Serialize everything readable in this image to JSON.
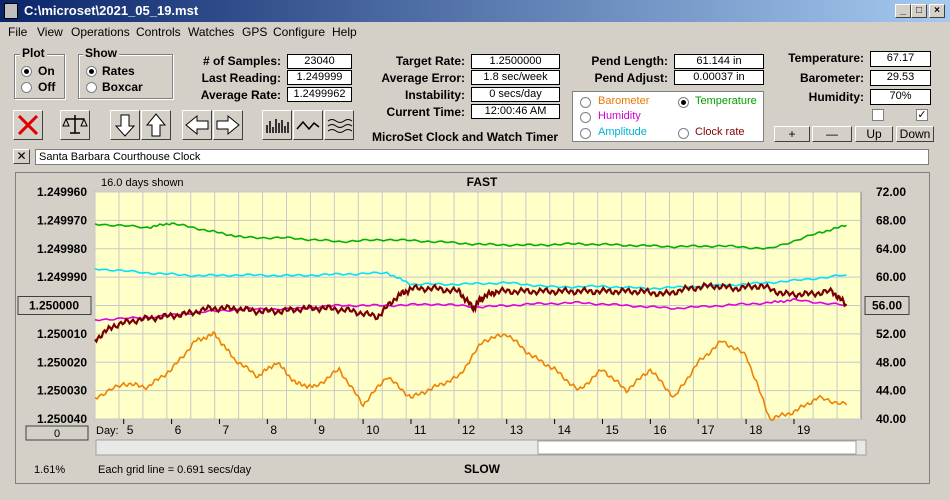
{
  "window": {
    "title": "C:\\microset\\2021_05_19.mst"
  },
  "menu": [
    "File",
    "View",
    "Operations",
    "Controls",
    "Watches",
    "GPS",
    "Configure",
    "Help"
  ],
  "plot": {
    "label": "Plot",
    "options": [
      "On",
      "Off"
    ],
    "selected": "On"
  },
  "show": {
    "label": "Show",
    "options": [
      "Rates",
      "Boxcar"
    ],
    "selected": "Rates"
  },
  "stats": {
    "samples_label": "# of Samples:",
    "samples": "23040",
    "last_label": "Last Reading:",
    "last": "1.249999",
    "avg_label": "Average Rate:",
    "avg": "1.2499962"
  },
  "rates": {
    "target_label": "Target Rate:",
    "target": "1.2500000",
    "error_label": "Average Error:",
    "error": "1.8 sec/week",
    "instab_label": "Instability:",
    "instab": "0 secs/day",
    "time_label": "Current Time:",
    "time": "12:00:46 AM"
  },
  "app_caption": "MicroSet Clock and Watch Timer",
  "pend": {
    "length_label": "Pend Length:",
    "length": "61.144 in",
    "adjust_label": "Pend Adjust:",
    "adjust": "0.00037 in"
  },
  "env": {
    "temp_label": "Temperature:",
    "temp": "67.17",
    "baro_label": "Barometer:",
    "baro": "29.53",
    "hum_label": "Humidity:",
    "hum": "70%"
  },
  "aux": {
    "options": [
      {
        "label": "Barometer",
        "color": "#e87800",
        "selected": false
      },
      {
        "label": "Temperature",
        "color": "#00a000",
        "selected": true
      },
      {
        "label": "Humidity",
        "color": "#d000d0",
        "selected": false
      },
      {
        "label": "Clock rate",
        "color": "#800000",
        "selected": false
      },
      {
        "label": "Amplitude",
        "color": "#00b0d0",
        "selected": false
      }
    ]
  },
  "scale_buttons": {
    "plus": "+",
    "minus": "—",
    "up": "Up",
    "down": "Down"
  },
  "watch_name": "Santa Barbara Courthouse Clock",
  "chart": {
    "days_shown": "16.0 days shown",
    "top_label": "FAST",
    "bottom_label": "SLOW",
    "left_ticks": [
      "1.249960",
      "1.249970",
      "1.249980",
      "1.249990",
      "1.250000",
      "1.250010",
      "1.250020",
      "1.250030",
      "1.250040"
    ],
    "right_ticks": [
      "72.00",
      "68.00",
      "64.00",
      "60.00",
      "56.00",
      "52.00",
      "48.00",
      "44.00",
      "40.00"
    ],
    "left_button": "1.250000",
    "right_button": "56.00",
    "bottom_left_button": "0",
    "day_label": "Day:",
    "days": [
      "5",
      "6",
      "7",
      "8",
      "9",
      "10",
      "11",
      "12",
      "13",
      "14",
      "15",
      "16",
      "17",
      "18",
      "19"
    ],
    "zoom": "1.61%",
    "grid_note": "Each grid line = 0.691 secs/day"
  },
  "chart_data": {
    "type": "line",
    "x_unit": "day",
    "xlim": [
      4.4,
      20.4
    ],
    "ylim_left": [
      1.24996,
      1.25004
    ],
    "ylim_right": [
      40,
      72
    ],
    "series": [
      {
        "name": "Temperature",
        "color": "#00b000",
        "axis": "right",
        "x": [
          4.4,
          5.5,
          6,
          6.8,
          7.5,
          8.5,
          9.5,
          10.5,
          11.5,
          12.5,
          13.5,
          14.5,
          15.5,
          16.5,
          17.5,
          18.5,
          19.5,
          20.1
        ],
        "y": [
          67.5,
          67,
          67.6,
          66.5,
          65.6,
          65.5,
          65,
          65.3,
          65,
          64.6,
          64.5,
          64.7,
          64.5,
          64.3,
          64.4,
          64,
          66.2,
          67.3
        ]
      },
      {
        "name": "Amplitude",
        "color": "#00e0ff",
        "axis": "right",
        "x": [
          4.4,
          5.5,
          6.5,
          7.5,
          8.5,
          9.5,
          10.5,
          11,
          12,
          13,
          14,
          15,
          16,
          17,
          18,
          19,
          20.1
        ],
        "y": [
          61.2,
          60.6,
          60.2,
          60.3,
          60.2,
          60.4,
          60.6,
          59,
          59,
          59.2,
          58.6,
          58.7,
          58.4,
          58.7,
          59,
          59.5,
          60.3
        ]
      },
      {
        "name": "Humidity",
        "color": "#e000e0",
        "axis": "right",
        "x": [
          4.4,
          5.5,
          6.5,
          7.5,
          8.5,
          9.5,
          10.5,
          11.5,
          12.5,
          13.5,
          14.5,
          15.5,
          16.5,
          17.5,
          18.5,
          19,
          20.1
        ],
        "y": [
          54,
          54.3,
          55,
          55.5,
          55.5,
          56,
          56,
          56.2,
          55.8,
          56.2,
          56.4,
          56,
          55.6,
          56,
          56.4,
          56.8,
          56
        ]
      },
      {
        "name": "Clock rate",
        "color": "#7a0000",
        "axis": "left",
        "x": [
          4.4,
          4.8,
          5.3,
          5.8,
          6.3,
          6.8,
          7.3,
          7.8,
          8.3,
          8.8,
          9.3,
          9.8,
          10.3,
          10.7,
          11,
          11.5,
          12,
          12.3,
          12.5,
          12.8,
          13.3,
          13.8,
          14.3,
          14.8,
          15.3,
          15.8,
          16.3,
          16.8,
          17.3,
          17.8,
          18.3,
          18.8,
          19.3,
          19.8,
          20.1
        ],
        "y": [
          1.250012,
          1.250007,
          1.250005,
          1.250004,
          1.250003,
          1.250001,
          1.250001,
          1.250002,
          1.250002,
          1.250001,
          1.250001,
          1.250002,
          1.250004,
          1.249997,
          1.249994,
          1.249994,
          1.249995,
          1.250001,
          1.249997,
          1.249995,
          1.249995,
          1.249995,
          1.249995,
          1.249995,
          1.249995,
          1.249995,
          1.249996,
          1.249994,
          1.249993,
          1.249994,
          1.249993,
          1.249996,
          1.249996,
          1.249995,
          1.25
        ]
      },
      {
        "name": "Barometer",
        "color": "#f08000",
        "axis": "right",
        "x": [
          4.4,
          5,
          5.5,
          6,
          6.5,
          6.9,
          7.3,
          7.8,
          8.2,
          8.6,
          9,
          9.5,
          10,
          10.5,
          11,
          11.5,
          12,
          12.5,
          13,
          13.5,
          14,
          14.5,
          15,
          15.5,
          16,
          16.5,
          17,
          17.5,
          18,
          18.5,
          19,
          19.5,
          20.1
        ],
        "y": [
          43,
          45,
          44.5,
          47,
          51,
          52,
          48.5,
          46,
          48,
          45,
          44.5,
          47,
          42,
          46,
          43,
          44.5,
          46,
          51,
          52,
          49,
          47,
          44,
          47,
          44,
          47,
          43,
          48,
          51,
          49,
          40,
          41,
          43,
          42
        ]
      }
    ]
  }
}
